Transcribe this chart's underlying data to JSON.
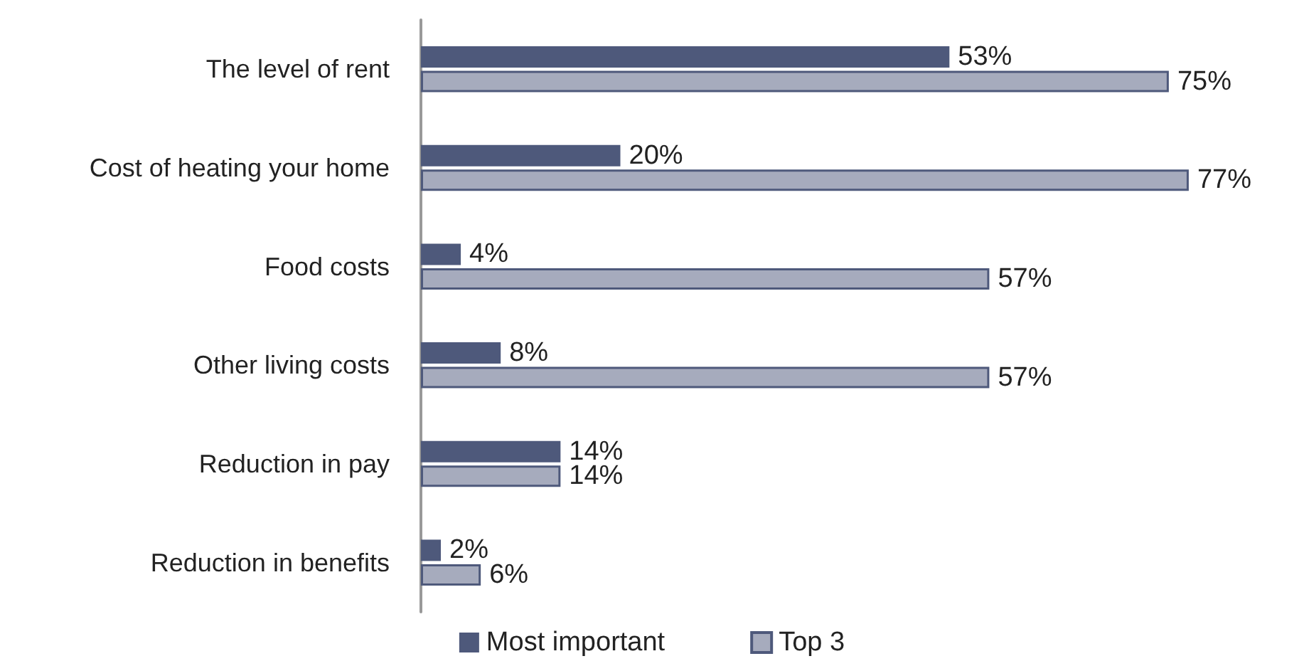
{
  "chart_data": {
    "type": "bar",
    "orientation": "horizontal",
    "categories": [
      "The level of rent",
      "Cost of heating your home",
      "Food costs",
      "Other living costs",
      "Reduction in pay",
      "Reduction in benefits"
    ],
    "series": [
      {
        "name": "Most important",
        "color": "#4e597b",
        "values": [
          53,
          20,
          4,
          8,
          14,
          2
        ],
        "value_labels": [
          "53%",
          "20%",
          "4%",
          "8%",
          "14%",
          "2%"
        ]
      },
      {
        "name": "Top 3",
        "color": "#a6abbd",
        "values": [
          75,
          77,
          57,
          57,
          14,
          6
        ],
        "value_labels": [
          "75%",
          "77%",
          "57%",
          "57%",
          "14%",
          "6%"
        ]
      }
    ],
    "legend": "bottom"
  }
}
